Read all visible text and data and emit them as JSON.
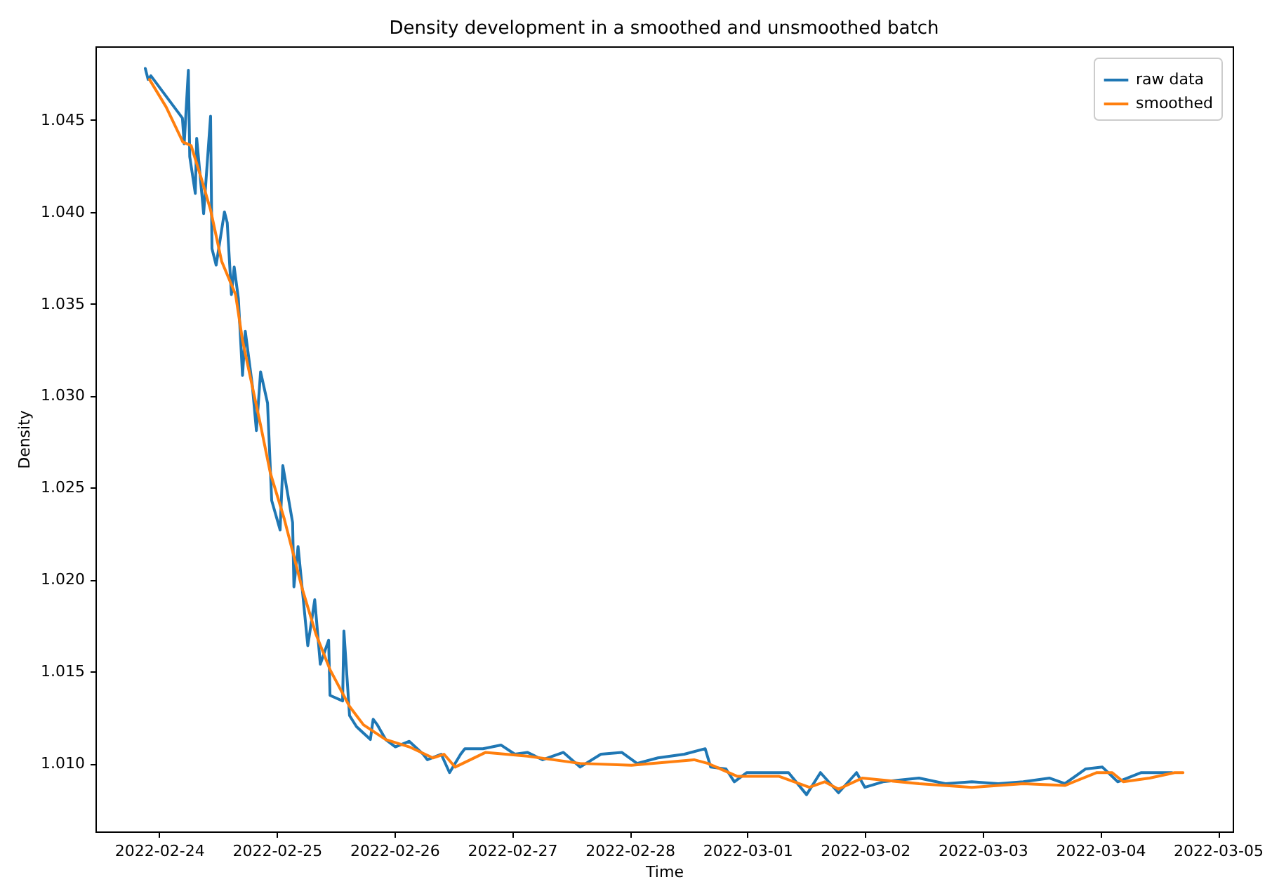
{
  "chart_data": {
    "type": "line",
    "title": "Density development in a smoothed and unsmoothed batch",
    "xlabel": "Time",
    "ylabel": "Density",
    "xlim": [
      "2022-02-23T11:00",
      "2022-03-05T03:00"
    ],
    "xticks": [
      "2022-02-24",
      "2022-02-25",
      "2022-02-26",
      "2022-02-27",
      "2022-02-28",
      "2022-03-01",
      "2022-03-02",
      "2022-03-03",
      "2022-03-04",
      "2022-03-05"
    ],
    "ylim": [
      1.0063,
      1.049
    ],
    "yticks": [
      {
        "value": 1.01,
        "label": "1.010"
      },
      {
        "value": 1.015,
        "label": "1.015"
      },
      {
        "value": 1.02,
        "label": "1.020"
      },
      {
        "value": 1.025,
        "label": "1.025"
      },
      {
        "value": 1.03,
        "label": "1.030"
      },
      {
        "value": 1.035,
        "label": "1.035"
      },
      {
        "value": 1.04,
        "label": "1.040"
      },
      {
        "value": 1.045,
        "label": "1.045"
      }
    ],
    "grid": false,
    "legend": "top right",
    "marker": "none",
    "line_style": "solid",
    "series": [
      {
        "name": "raw data",
        "color": "#1f77b4",
        "x": [
          "2022-02-23T21:10",
          "2022-02-23T21:44",
          "2022-02-23T22:18",
          "2022-02-24T04:44",
          "2022-02-24T05:06",
          "2022-02-24T05:57",
          "2022-02-24T06:14",
          "2022-02-24T07:22",
          "2022-02-24T07:39",
          "2022-02-24T09:04",
          "2022-02-24T10:29",
          "2022-02-24T10:46",
          "2022-02-24T11:37",
          "2022-02-24T13:19",
          "2022-02-24T13:53",
          "2022-02-24T14:44",
          "2022-02-24T15:18",
          "2022-02-24T16:09",
          "2022-02-24T17:00",
          "2022-02-24T17:34",
          "2022-02-24T18:59",
          "2022-02-24T19:50",
          "2022-02-24T20:41",
          "2022-02-24T22:06",
          "2022-02-24T22:57",
          "2022-02-25T00:40",
          "2022-02-25T01:13",
          "2022-02-25T03:13",
          "2022-02-25T03:29",
          "2022-02-25T04:20",
          "2022-02-25T06:19",
          "2022-02-25T07:44",
          "2022-02-25T08:52",
          "2022-02-25T10:34",
          "2022-02-25T10:51",
          "2022-02-25T13:25",
          "2022-02-25T13:41",
          "2022-02-25T14:50",
          "2022-02-25T16:15",
          "2022-02-25T19:05",
          "2022-02-25T19:39",
          "2022-02-25T20:30",
          "2022-02-25T22:12",
          "2022-02-26T00:11",
          "2022-02-26T03:01",
          "2022-02-26T05:51",
          "2022-02-26T06:42",
          "2022-02-26T09:32",
          "2022-02-26T11:14",
          "2022-02-26T13:30",
          "2022-02-26T14:21",
          "2022-02-26T18:02",
          "2022-02-26T21:43",
          "2022-02-27T00:33",
          "2022-02-27T03:06",
          "2022-02-27T06:13",
          "2022-02-27T10:28",
          "2022-02-27T13:52",
          "2022-02-27T18:07",
          "2022-02-27T22:22",
          "2022-02-28T01:29",
          "2022-02-28T05:44",
          "2022-02-28T11:08",
          "2022-02-28T15:23",
          "2022-02-28T16:31",
          "2022-02-28T19:38",
          "2022-02-28T21:20",
          "2022-02-28T23:53",
          "2022-03-01T04:08",
          "2022-03-01T08:23",
          "2022-03-01T12:04",
          "2022-03-01T14:54",
          "2022-03-01T18:35",
          "2022-03-01T22:16",
          "2022-03-01T23:58",
          "2022-03-02T03:39",
          "2022-03-02T11:01",
          "2022-03-02T16:24",
          "2022-03-02T21:47",
          "2022-03-03T03:10",
          "2022-03-03T08:16",
          "2022-03-03T13:40",
          "2022-03-03T16:46",
          "2022-03-03T21:01",
          "2022-03-04T00:25",
          "2022-03-04T03:33",
          "2022-03-04T08:22",
          "2022-03-04T10:55",
          "2022-03-04T14:36"
        ],
        "values": [
          1.0478,
          1.0472,
          1.0474,
          1.0451,
          1.0437,
          1.0477,
          1.043,
          1.041,
          1.044,
          1.0399,
          1.0452,
          1.038,
          1.0371,
          1.04,
          1.0394,
          1.0355,
          1.037,
          1.0353,
          1.0311,
          1.0335,
          1.0306,
          1.0281,
          1.0313,
          1.0296,
          1.0243,
          1.0227,
          1.0262,
          1.0231,
          1.0196,
          1.0218,
          1.0164,
          1.0189,
          1.0154,
          1.0167,
          1.0137,
          1.0134,
          1.0172,
          1.0126,
          1.012,
          1.0113,
          1.0124,
          1.0121,
          1.0113,
          1.0109,
          1.0112,
          1.0105,
          1.0102,
          1.0105,
          1.0095,
          1.0105,
          1.0108,
          1.0108,
          1.011,
          1.0105,
          1.0106,
          1.0102,
          1.0106,
          1.0098,
          1.0105,
          1.0106,
          1.01,
          1.0103,
          1.0105,
          1.0108,
          1.0098,
          1.0097,
          1.009,
          1.0095,
          1.0095,
          1.0095,
          1.0083,
          1.0095,
          1.0084,
          1.0095,
          1.0087,
          1.009,
          1.0092,
          1.0089,
          1.009,
          1.0089,
          1.009,
          1.0092,
          1.0089,
          1.0097,
          1.0098,
          1.009,
          1.0095,
          1.0095,
          1.0095
        ]
      },
      {
        "name": "smoothed",
        "color": "#ff7f0e",
        "x": [
          "2022-02-23T22:01",
          "2022-02-24T01:25",
          "2022-02-24T04:49",
          "2022-02-24T06:31",
          "2022-02-24T08:30",
          "2022-02-24T10:29",
          "2022-02-24T12:45",
          "2022-02-24T15:35",
          "2022-02-24T17:00",
          "2022-02-24T20:41",
          "2022-02-24T22:40",
          "2022-02-25T01:31",
          "2022-02-25T05:11",
          "2022-02-25T08:01",
          "2022-02-25T10:51",
          "2022-02-25T14:50",
          "2022-02-25T17:40",
          "2022-02-25T22:12",
          "2022-02-26T03:01",
          "2022-02-26T07:50",
          "2022-02-26T10:06",
          "2022-02-26T12:22",
          "2022-02-26T18:36",
          "2022-02-27T03:06",
          "2022-02-27T13:52",
          "2022-02-28T00:22",
          "2022-02-28T13:07",
          "2022-02-28T15:56",
          "2022-02-28T21:53",
          "2022-03-01T06:23",
          "2022-03-01T12:38",
          "2022-03-01T15:45",
          "2022-03-01T18:35",
          "2022-03-01T23:24",
          "2022-03-02T11:01",
          "2022-03-02T21:47",
          "2022-03-03T08:16",
          "2022-03-03T16:46",
          "2022-03-03T23:18",
          "2022-03-04T02:25",
          "2022-03-04T04:41",
          "2022-03-04T10:04",
          "2022-03-04T15:10",
          "2022-03-04T16:52"
        ],
        "values": [
          1.0472,
          1.0457,
          1.0438,
          1.0436,
          1.0419,
          1.0401,
          1.0373,
          1.0355,
          1.033,
          1.0284,
          1.0258,
          1.0233,
          1.0195,
          1.017,
          1.0151,
          1.0131,
          1.0121,
          1.0113,
          1.0109,
          1.0103,
          1.0105,
          1.0098,
          1.0106,
          1.0104,
          1.01,
          1.0099,
          1.0102,
          1.01,
          1.0093,
          1.0093,
          1.0087,
          1.009,
          1.0086,
          1.0092,
          1.0089,
          1.0087,
          1.0089,
          1.0088,
          1.0095,
          1.0095,
          1.009,
          1.0092,
          1.0095,
          1.0095
        ]
      }
    ]
  }
}
